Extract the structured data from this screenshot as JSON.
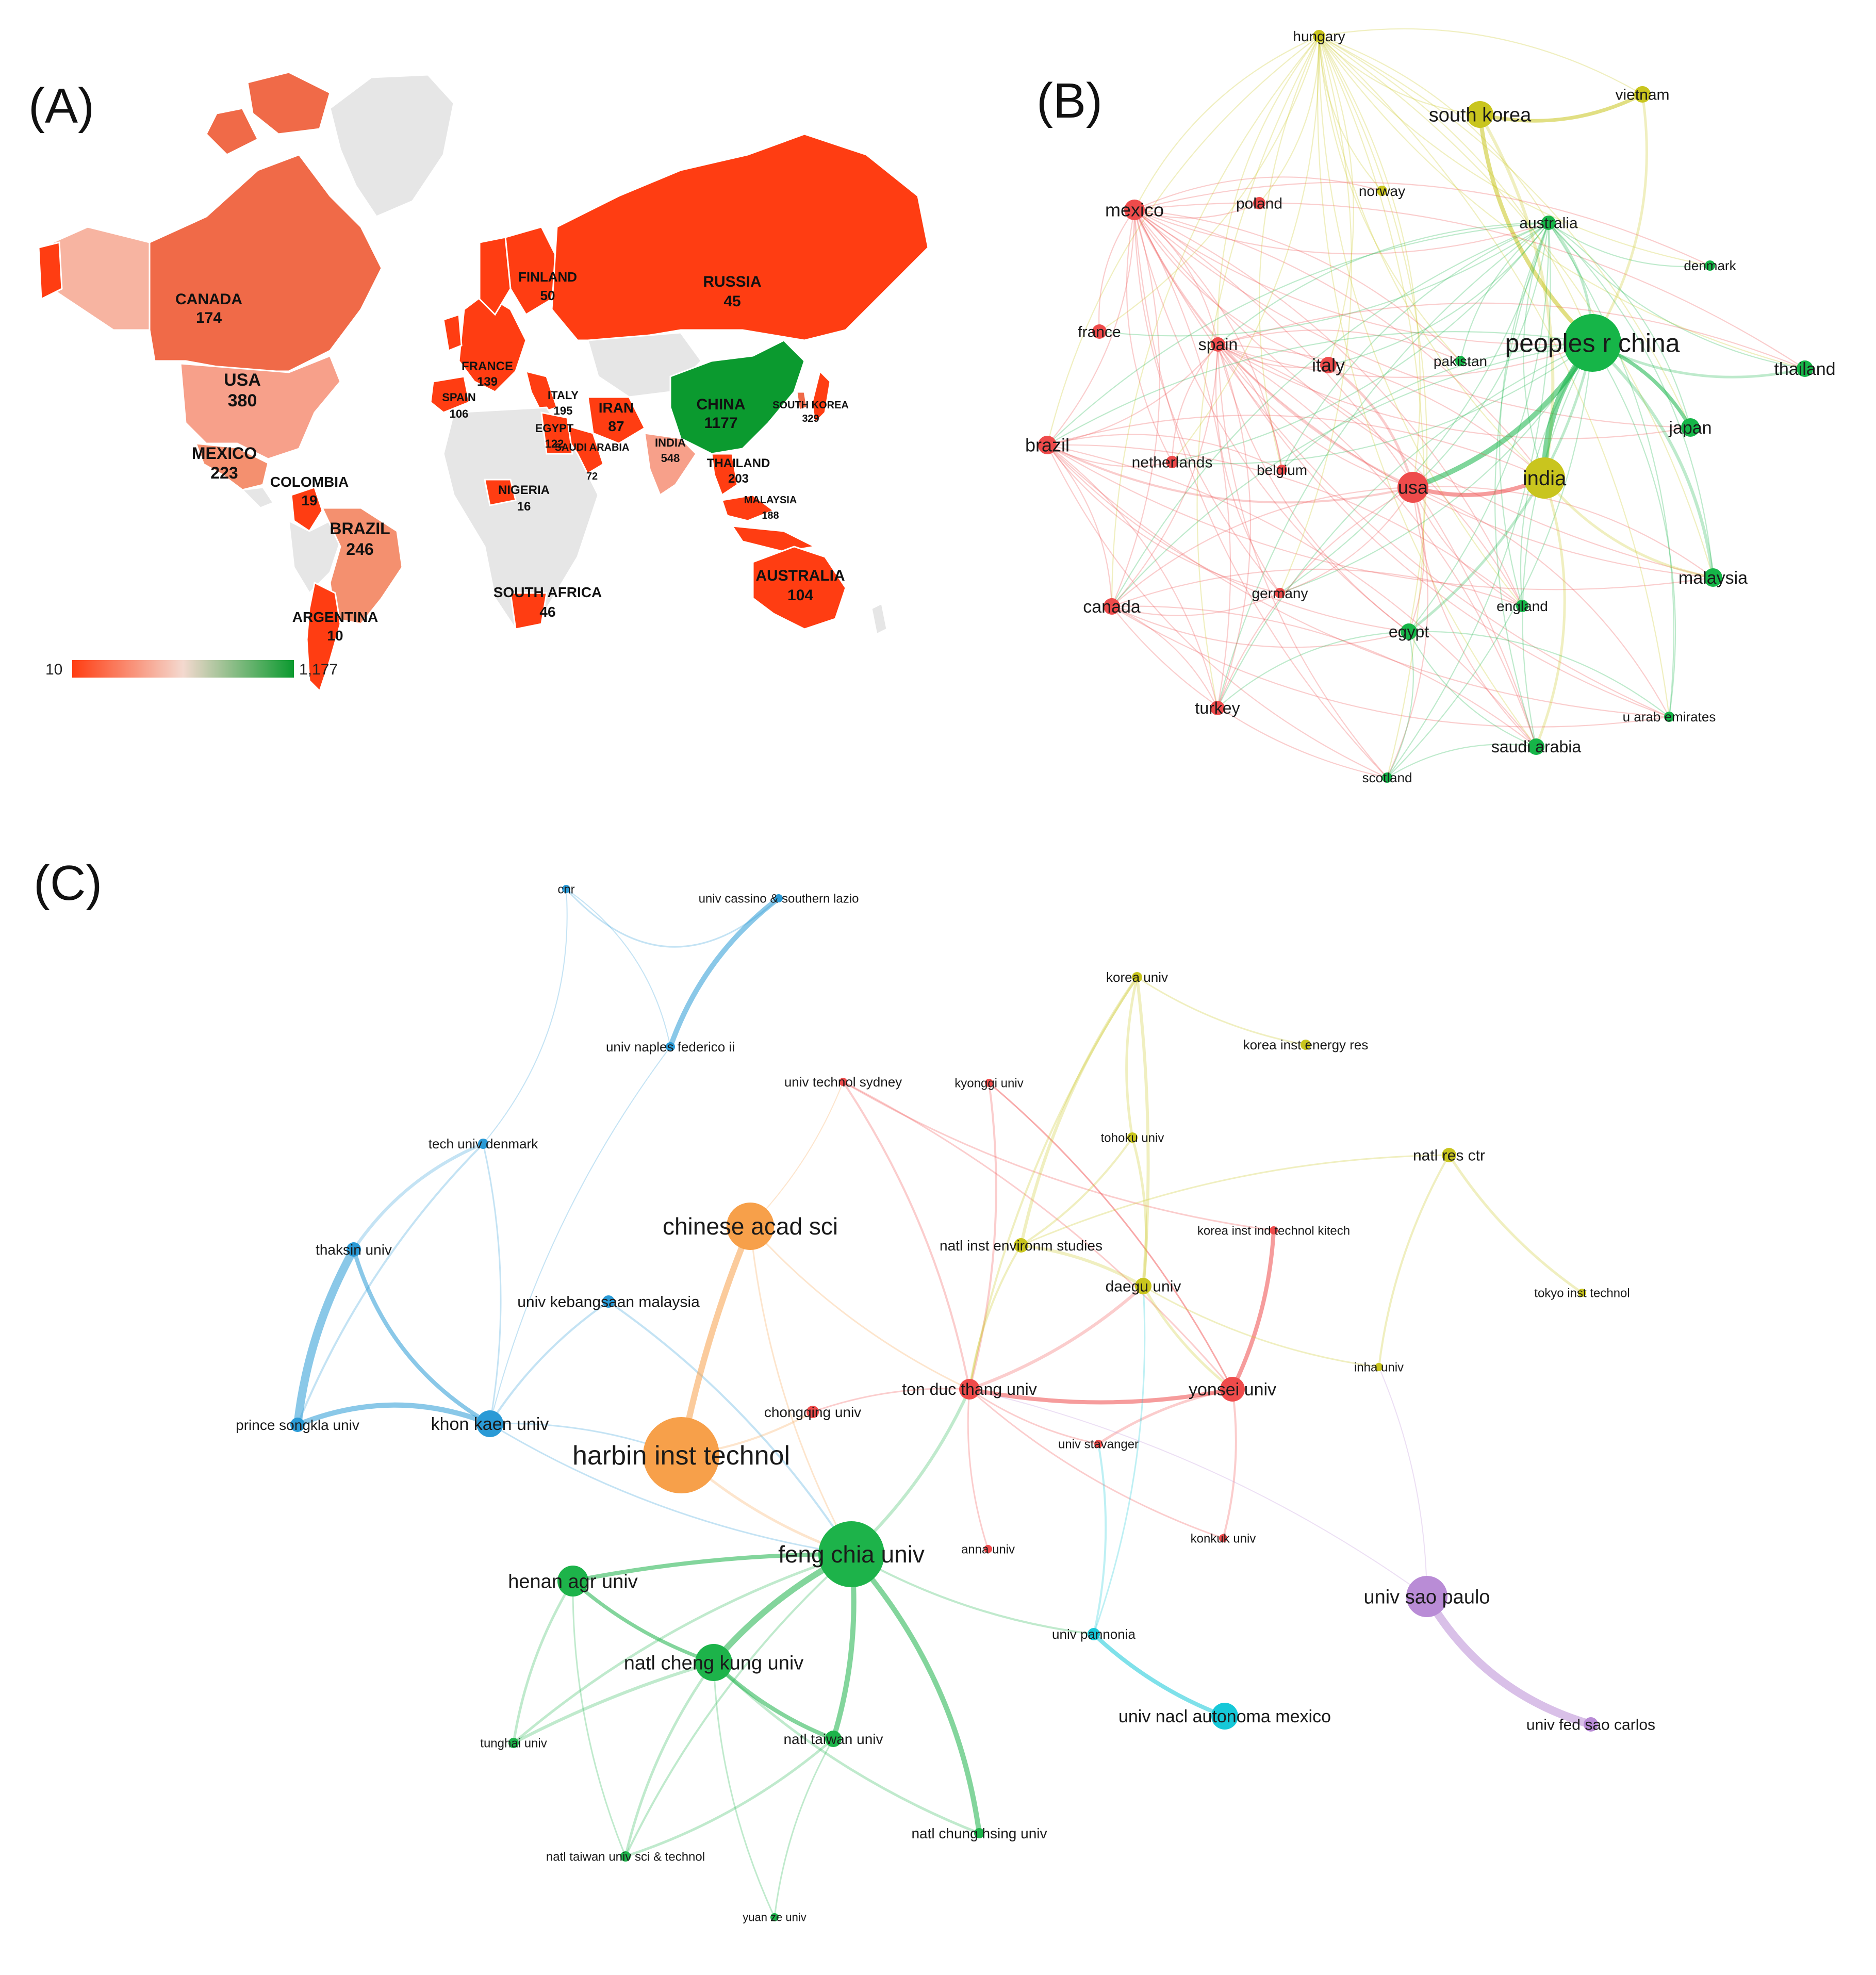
{
  "panels": {
    "A": {
      "label": "(A)",
      "countries": [
        {
          "name": "CANADA",
          "value": "174"
        },
        {
          "name": "USA",
          "value": "380"
        },
        {
          "name": "MEXICO",
          "value": "223"
        },
        {
          "name": "COLOMBIA",
          "value": "19"
        },
        {
          "name": "BRAZIL",
          "value": "246"
        },
        {
          "name": "ARGENTINA",
          "value": "10"
        },
        {
          "name": "FINLAND",
          "value": "50"
        },
        {
          "name": "RUSSIA",
          "value": "45"
        },
        {
          "name": "FRANCE",
          "value": "139"
        },
        {
          "name": "SPAIN",
          "value": "106"
        },
        {
          "name": "ITALY",
          "value": "195"
        },
        {
          "name": "EGYPT",
          "value": "122"
        },
        {
          "name": "IRAN",
          "value": "87"
        },
        {
          "name": "SAUDI ARABIA",
          "value": "72"
        },
        {
          "name": "CHINA",
          "value": "1177"
        },
        {
          "name": "SOUTH KOREA",
          "value": "329"
        },
        {
          "name": "INDIA",
          "value": "548"
        },
        {
          "name": "THAILAND",
          "value": "203"
        },
        {
          "name": "MALAYSIA",
          "value": "188"
        },
        {
          "name": "NIGERIA",
          "value": "16"
        },
        {
          "name": "SOUTH AFRICA",
          "value": "46"
        },
        {
          "name": "AUSTRALIA",
          "value": "104"
        }
      ],
      "legend": {
        "min": "10",
        "max": "1,177"
      },
      "colors": {
        "low": "#ff3d12",
        "mid": "#f4d9cf",
        "high": "#0b9a2f",
        "no_data": "#e6e6e6"
      }
    },
    "B": {
      "label": "(B)",
      "clusters": {
        "red": "#ee4b4b",
        "yellow": "#c9c51e",
        "green": "#16b548"
      },
      "nodes": [
        {
          "id": "hungary",
          "label": "hungary",
          "cluster": "yellow"
        },
        {
          "id": "south_korea",
          "label": "south korea",
          "cluster": "yellow"
        },
        {
          "id": "vietnam",
          "label": "vietnam",
          "cluster": "yellow"
        },
        {
          "id": "mexico",
          "label": "mexico",
          "cluster": "red"
        },
        {
          "id": "poland",
          "label": "poland",
          "cluster": "red"
        },
        {
          "id": "norway",
          "label": "norway",
          "cluster": "yellow"
        },
        {
          "id": "australia",
          "label": "australia",
          "cluster": "green"
        },
        {
          "id": "denmark",
          "label": "denmark",
          "cluster": "green"
        },
        {
          "id": "france",
          "label": "france",
          "cluster": "red"
        },
        {
          "id": "spain",
          "label": "spain",
          "cluster": "red"
        },
        {
          "id": "italy",
          "label": "italy",
          "cluster": "red"
        },
        {
          "id": "pakistan",
          "label": "pakistan",
          "cluster": "green"
        },
        {
          "id": "china",
          "label": "peoples r china",
          "cluster": "green"
        },
        {
          "id": "thailand",
          "label": "thailand",
          "cluster": "green"
        },
        {
          "id": "japan",
          "label": "japan",
          "cluster": "green"
        },
        {
          "id": "brazil",
          "label": "brazil",
          "cluster": "red"
        },
        {
          "id": "netherlands",
          "label": "netherlands",
          "cluster": "red"
        },
        {
          "id": "belgium",
          "label": "belgium",
          "cluster": "red"
        },
        {
          "id": "usa",
          "label": "usa",
          "cluster": "red"
        },
        {
          "id": "india",
          "label": "india",
          "cluster": "yellow"
        },
        {
          "id": "malaysia",
          "label": "malaysia",
          "cluster": "green"
        },
        {
          "id": "canada",
          "label": "canada",
          "cluster": "red"
        },
        {
          "id": "germany",
          "label": "germany",
          "cluster": "red"
        },
        {
          "id": "england",
          "label": "england",
          "cluster": "green"
        },
        {
          "id": "egypt",
          "label": "egypt",
          "cluster": "green"
        },
        {
          "id": "turkey",
          "label": "turkey",
          "cluster": "red"
        },
        {
          "id": "uae",
          "label": "u arab emirates",
          "cluster": "green"
        },
        {
          "id": "saudi",
          "label": "saudi arabia",
          "cluster": "green"
        },
        {
          "id": "scotland",
          "label": "scotland",
          "cluster": "green"
        }
      ]
    },
    "C": {
      "label": "(C)",
      "clusters": {
        "blue": "#2a9ad6",
        "red": "#ef4b4b",
        "yellow": "#c9c51e",
        "orange": "#f7a04a",
        "green": "#1db34a",
        "cyan": "#16c8d8",
        "purple": "#b98cd6"
      },
      "nodes": [
        {
          "id": "cnr",
          "label": "cnr",
          "cluster": "blue"
        },
        {
          "id": "cassino",
          "label": "univ cassino & southern lazio",
          "cluster": "blue"
        },
        {
          "id": "naples",
          "label": "univ naples federico ii",
          "cluster": "blue"
        },
        {
          "id": "korea_univ",
          "label": "korea univ",
          "cluster": "yellow"
        },
        {
          "id": "korea_energy",
          "label": "korea inst energy res",
          "cluster": "yellow"
        },
        {
          "id": "uts",
          "label": "univ technol sydney",
          "cluster": "red"
        },
        {
          "id": "kyonggi",
          "label": "kyonggi univ",
          "cluster": "red"
        },
        {
          "id": "dtu",
          "label": "tech univ denmark",
          "cluster": "blue"
        },
        {
          "id": "tohoku",
          "label": "tohoku univ",
          "cluster": "yellow"
        },
        {
          "id": "natl_res",
          "label": "natl res ctr",
          "cluster": "yellow"
        },
        {
          "id": "cas",
          "label": "chinese acad sci",
          "cluster": "orange"
        },
        {
          "id": "kitech",
          "label": "korea inst ind technol kitech",
          "cluster": "red"
        },
        {
          "id": "thaksin",
          "label": "thaksin univ",
          "cluster": "blue"
        },
        {
          "id": "nies",
          "label": "natl inst environm studies",
          "cluster": "yellow"
        },
        {
          "id": "daegu",
          "label": "daegu univ",
          "cluster": "yellow"
        },
        {
          "id": "ukm",
          "label": "univ kebangsaan malaysia",
          "cluster": "blue"
        },
        {
          "id": "tokyo_tech",
          "label": "tokyo inst technol",
          "cluster": "yellow"
        },
        {
          "id": "inha",
          "label": "inha univ",
          "cluster": "yellow"
        },
        {
          "id": "tdt",
          "label": "ton duc thang univ",
          "cluster": "red"
        },
        {
          "id": "yonsei",
          "label": "yonsei univ",
          "cluster": "red"
        },
        {
          "id": "chongqing",
          "label": "chongqing univ",
          "cluster": "red"
        },
        {
          "id": "psu",
          "label": "prince songkla univ",
          "cluster": "blue"
        },
        {
          "id": "kku",
          "label": "khon kaen univ",
          "cluster": "blue"
        },
        {
          "id": "hit",
          "label": "harbin inst technol",
          "cluster": "orange"
        },
        {
          "id": "stavanger",
          "label": "univ stavanger",
          "cluster": "red"
        },
        {
          "id": "konkuk",
          "label": "konkuk univ",
          "cluster": "red"
        },
        {
          "id": "anna",
          "label": "anna univ",
          "cluster": "red"
        },
        {
          "id": "fcu",
          "label": "feng chia univ",
          "cluster": "green"
        },
        {
          "id": "henan",
          "label": "henan agr univ",
          "cluster": "green"
        },
        {
          "id": "usp",
          "label": "univ sao paulo",
          "cluster": "purple"
        },
        {
          "id": "pannonia",
          "label": "univ pannonia",
          "cluster": "cyan"
        },
        {
          "id": "ncku",
          "label": "natl cheng kung univ",
          "cluster": "green"
        },
        {
          "id": "unam",
          "label": "univ nacl autonoma mexico",
          "cluster": "cyan"
        },
        {
          "id": "ufscar",
          "label": "univ fed sao carlos",
          "cluster": "purple"
        },
        {
          "id": "tunghai",
          "label": "tunghai univ",
          "cluster": "green"
        },
        {
          "id": "ntu",
          "label": "natl taiwan univ",
          "cluster": "green"
        },
        {
          "id": "nchu",
          "label": "natl chung hsing univ",
          "cluster": "green"
        },
        {
          "id": "ntust",
          "label": "natl taiwan univ sci & technol",
          "cluster": "green"
        },
        {
          "id": "yuanze",
          "label": "yuan ze univ",
          "cluster": "green"
        }
      ]
    }
  }
}
